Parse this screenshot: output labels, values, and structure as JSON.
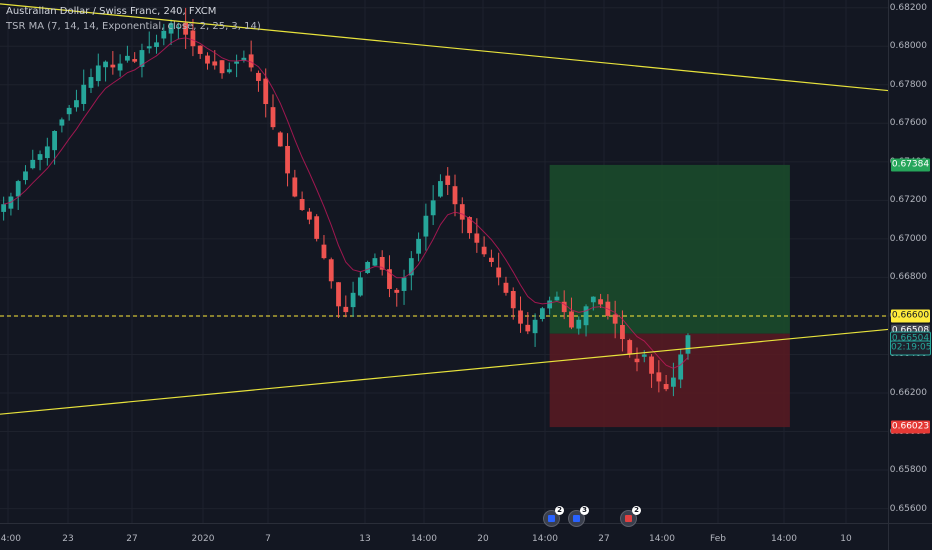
{
  "symbol": {
    "title": "Australian Dollar / Swiss Franc, 240, FXCM",
    "indicator": "TSR MA (7, 14, 14, Exponential, close, 2, 25, 3, 14)"
  },
  "colors": {
    "background": "#131722",
    "grid": "#1e222d",
    "up": "#26a69a",
    "down": "#ef5350",
    "trendline": "#e8e33c",
    "ma": "#c2185b",
    "target_zone": "#1b4d2b",
    "stop_zone": "#5a1a22",
    "dashed_level": "#ffeb3b"
  },
  "price_axis": {
    "ticks": [
      "0.68200",
      "0.68000",
      "0.67800",
      "0.67600",
      "0.67400",
      "0.67200",
      "0.67000",
      "0.66800",
      "0.66600",
      "0.66400",
      "0.66200",
      "0.66000",
      "0.65800",
      "0.65600"
    ],
    "tags": [
      {
        "label": "0.67384",
        "kind": "target"
      },
      {
        "label": "0.66600",
        "kind": "level"
      },
      {
        "label": "0.66508",
        "kind": "entry"
      },
      {
        "label": "0.66504",
        "kind": "last"
      },
      {
        "label": "02:19:05",
        "kind": "countdown"
      },
      {
        "label": "0.66023",
        "kind": "stop"
      }
    ]
  },
  "time_axis": {
    "ticks": [
      "14:00",
      "23",
      "27",
      "2020",
      "7",
      "13",
      "14:00",
      "20",
      "14:00",
      "27",
      "14:00",
      "Feb",
      "14:00",
      "10"
    ]
  },
  "events": [
    {
      "count": "2",
      "icon": "calendar-flag-icon"
    },
    {
      "count": "3",
      "icon": "calendar-flag-icon"
    },
    {
      "count": "2",
      "icon": "calendar-flag-icon"
    }
  ],
  "chart_data": {
    "type": "candlestick",
    "title": "Australian Dollar / Swiss Franc, 240, FXCM",
    "ylim": [
      0.6552,
      0.6824
    ],
    "trendlines": [
      {
        "name": "upper",
        "from": {
          "x": 0,
          "y": 0.6822
        },
        "to": {
          "x": 122,
          "y": 0.6777
        }
      },
      {
        "name": "lower",
        "from": {
          "x": 0,
          "y": 0.6609
        },
        "to": {
          "x": 122,
          "y": 0.6653
        }
      }
    ],
    "horizontal_levels": [
      0.666
    ],
    "position": {
      "entry": 0.66508,
      "target": 0.67384,
      "stop": 0.66023,
      "x_start": 75,
      "x_end": 108
    },
    "closes": [
      0.6718,
      0.6722,
      0.673,
      0.6735,
      0.6741,
      0.6744,
      0.6748,
      0.6756,
      0.6762,
      0.6768,
      0.6772,
      0.678,
      0.6784,
      0.679,
      0.6792,
      0.6789,
      0.6791,
      0.6795,
      0.6792,
      0.6798,
      0.68,
      0.6802,
      0.6808,
      0.6812,
      0.681,
      0.6806,
      0.68,
      0.6796,
      0.6791,
      0.679,
      0.6786,
      0.6788,
      0.6792,
      0.6794,
      0.6789,
      0.6782,
      0.677,
      0.6758,
      0.6748,
      0.6734,
      0.6722,
      0.6715,
      0.671,
      0.67,
      0.669,
      0.6678,
      0.6665,
      0.6662,
      0.6672,
      0.668,
      0.6688,
      0.669,
      0.6684,
      0.6674,
      0.6672,
      0.668,
      0.669,
      0.67,
      0.6712,
      0.672,
      0.673,
      0.6728,
      0.6718,
      0.671,
      0.6703,
      0.6698,
      0.6692,
      0.6688,
      0.668,
      0.6672,
      0.6664,
      0.6656,
      0.6652,
      0.6658,
      0.6664,
      0.6668,
      0.667,
      0.6662,
      0.6654,
      0.6658,
      0.6665,
      0.667,
      0.6666,
      0.666,
      0.6656,
      0.6648,
      0.664,
      0.6636,
      0.664,
      0.663,
      0.6626,
      0.6622,
      0.6628,
      0.664,
      0.665
    ]
  }
}
